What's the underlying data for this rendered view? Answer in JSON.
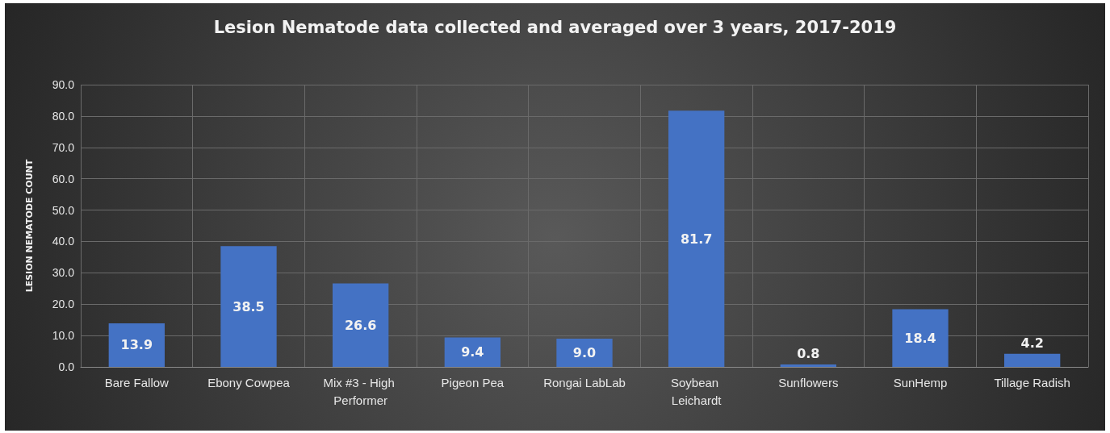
{
  "chart_data": {
    "type": "bar",
    "title": "Lesion Nematode data collected and averaged over 3 years, 2017-2019",
    "ylabel": "LESION NEMATODE COUNT",
    "categories": [
      "Bare Fallow",
      "Ebony Cowpea",
      "Mix #3 - High Performer",
      "Pigeon Pea",
      "Rongai LabLab",
      "Soybean Leichardt",
      "Sunflowers",
      "SunHemp",
      "Tillage Radish"
    ],
    "values": [
      13.9,
      38.5,
      26.6,
      9.4,
      9.0,
      81.7,
      0.8,
      18.4,
      4.2
    ],
    "value_labels": [
      "13.9",
      "38.5",
      "26.6",
      "9.4",
      "9.0",
      "81.7",
      "0.8",
      "18.4",
      "4.2"
    ],
    "color": "#4472c4",
    "ylim": [
      0,
      90
    ],
    "yticks": [
      {
        "value": 0,
        "label": "0.0"
      },
      {
        "value": 10,
        "label": "10.0"
      },
      {
        "value": 20,
        "label": "20.0"
      },
      {
        "value": 30,
        "label": "30.0"
      },
      {
        "value": 40,
        "label": "40.0"
      },
      {
        "value": 50,
        "label": "50.0"
      },
      {
        "value": 60,
        "label": "60.0"
      },
      {
        "value": 70,
        "label": "70.0"
      },
      {
        "value": 80,
        "label": "80.0"
      },
      {
        "value": 90,
        "label": "90.0"
      }
    ],
    "grid": true
  }
}
